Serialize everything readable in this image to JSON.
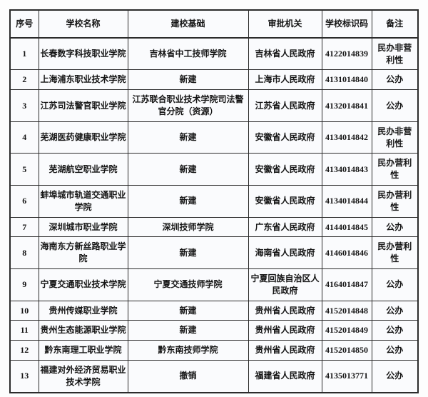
{
  "colors": {
    "border": "#2b2b2b",
    "cell_bg": "#fafbfd",
    "text": "#151515",
    "page_bg": "#fdfdfd"
  },
  "table": {
    "columns": [
      {
        "key": "seq",
        "label": "序号"
      },
      {
        "key": "name",
        "label": "学校名称"
      },
      {
        "key": "basis",
        "label": "建校基础"
      },
      {
        "key": "authority",
        "label": "审批机关"
      },
      {
        "key": "code",
        "label": "学校标识码"
      },
      {
        "key": "remark",
        "label": "备注"
      }
    ],
    "rows": [
      {
        "seq": "1",
        "name": "长春数字科技职业学院",
        "basis": "吉林省中工技师学院",
        "authority": "吉林省人民政府",
        "code": "4122014839",
        "remark": "民办非营利性"
      },
      {
        "seq": "2",
        "name": "上海浦东职业技术学院",
        "basis": "新建",
        "authority": "上海市人民政府",
        "code": "4131014840",
        "remark": "公办"
      },
      {
        "seq": "3",
        "name": "江苏司法警官职业学院",
        "basis": "江苏联合职业技术学院司法警官分院（资源）",
        "authority": "江苏省人民政府",
        "code": "4132014841",
        "remark": "公办"
      },
      {
        "seq": "4",
        "name": "芜湖医药健康职业学院",
        "basis": "新建",
        "authority": "安徽省人民政府",
        "code": "4134014842",
        "remark": "民办非营利性"
      },
      {
        "seq": "5",
        "name": "芜湖航空职业学院",
        "basis": "新建",
        "authority": "安徽省人民政府",
        "code": "4134014843",
        "remark": "民办营利性"
      },
      {
        "seq": "6",
        "name": "蚌埠城市轨道交通职业学院",
        "basis": "新建",
        "authority": "安徽省人民政府",
        "code": "4134014844",
        "remark": "民办营利性"
      },
      {
        "seq": "7",
        "name": "深圳城市职业学院",
        "basis": "深圳技师学院",
        "authority": "广东省人民政府",
        "code": "4144014845",
        "remark": "公办"
      },
      {
        "seq": "8",
        "name": "海南东方新丝路职业学院",
        "basis": "新建",
        "authority": "海南省人民政府",
        "code": "4146014846",
        "remark": "民办营利性"
      },
      {
        "seq": "9",
        "name": "宁夏交通职业技术学院",
        "basis": "宁夏交通技师学院",
        "authority": "宁夏回族自治区人民政府",
        "code": "4164014847",
        "remark": "公办"
      },
      {
        "seq": "10",
        "name": "贵州传媒职业学院",
        "basis": "新建",
        "authority": "贵州省人民政府",
        "code": "4152014848",
        "remark": "公办"
      },
      {
        "seq": "11",
        "name": "贵州生态能源职业学院",
        "basis": "新建",
        "authority": "贵州省人民政府",
        "code": "4152014849",
        "remark": "公办"
      },
      {
        "seq": "12",
        "name": "黔东南理工职业学院",
        "basis": "黔东南技师学院",
        "authority": "贵州省人民政府",
        "code": "4152014850",
        "remark": "公办"
      },
      {
        "seq": "13",
        "name": "福建对外经济贸易职业技术学院",
        "basis": "撤销",
        "authority": "福建省人民政府",
        "code": "4135013771",
        "remark": "公办"
      }
    ]
  }
}
